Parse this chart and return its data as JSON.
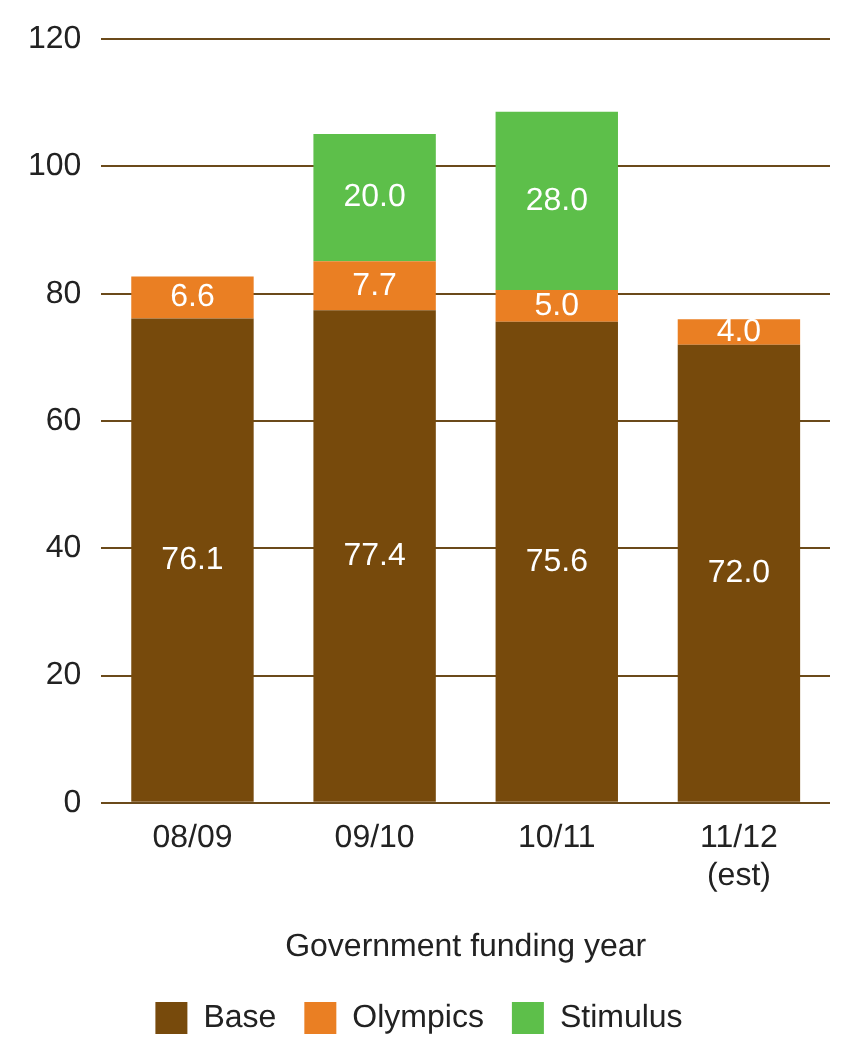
{
  "chart_data": {
    "type": "bar",
    "stacked": true,
    "xlabel": "Government funding year",
    "categories": [
      "08/09",
      "09/10",
      "10/11",
      "11/12\n(est)"
    ],
    "series": [
      {
        "name": "Base",
        "color": "#774a0c",
        "values": [
          76.1,
          77.4,
          75.6,
          72.0
        ],
        "value_labels": [
          "76.1",
          "77.4",
          "75.6",
          "72.0"
        ]
      },
      {
        "name": "Olympics",
        "color": "#ea7f23",
        "values": [
          6.6,
          7.7,
          5.0,
          4.0
        ],
        "value_labels": [
          "6.6",
          "7.7",
          "5.0",
          "4.0"
        ]
      },
      {
        "name": "Stimulus",
        "color": "#5dbf4a",
        "values": [
          null,
          20.0,
          28.0,
          null
        ],
        "value_labels": [
          null,
          "20.0",
          "28.0",
          null
        ]
      }
    ],
    "ylim": [
      0,
      120
    ],
    "yticks": [
      0,
      20,
      40,
      60,
      80,
      100,
      120
    ],
    "grid": "y",
    "legend": "bottom"
  }
}
